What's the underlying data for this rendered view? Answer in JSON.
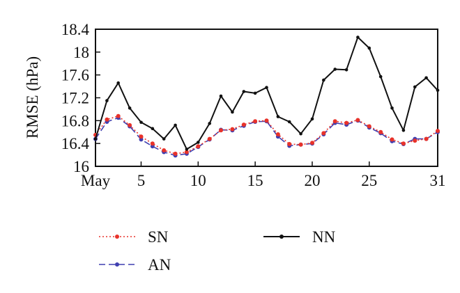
{
  "chart_data": {
    "type": "line",
    "title": "",
    "xlabel": "",
    "ylabel": "RMSE (hPa)",
    "xlim": [
      1,
      31
    ],
    "ylim": [
      16,
      18.4
    ],
    "x_ticks": [
      1,
      5,
      10,
      15,
      20,
      25,
      31
    ],
    "x_tick_labels": [
      "May",
      "5",
      "10",
      "15",
      "20",
      "25",
      "31"
    ],
    "y_ticks": [
      16,
      16.4,
      16.8,
      17.2,
      17.6,
      18,
      18.4
    ],
    "y_tick_labels": [
      "16",
      "16.4",
      "16.8",
      "17.2",
      "17.6",
      "18",
      "18.4"
    ],
    "grid": false,
    "legend_position": "bottom",
    "x": [
      1,
      2,
      3,
      4,
      5,
      6,
      7,
      8,
      9,
      10,
      11,
      12,
      13,
      14,
      15,
      16,
      17,
      18,
      19,
      20,
      21,
      22,
      23,
      24,
      25,
      26,
      27,
      28,
      29,
      30,
      31
    ],
    "series": [
      {
        "name": "SN",
        "color": "#e8322a",
        "line_style": "dotted",
        "values": [
          16.55,
          16.82,
          16.88,
          16.72,
          16.52,
          16.4,
          16.28,
          16.22,
          16.25,
          16.35,
          16.48,
          16.63,
          16.65,
          16.73,
          16.79,
          16.8,
          16.56,
          16.39,
          16.38,
          16.41,
          16.58,
          16.79,
          16.76,
          16.81,
          16.7,
          16.6,
          16.47,
          16.4,
          16.45,
          16.48,
          16.62
        ]
      },
      {
        "name": "AN",
        "color": "#3f3fb0",
        "line_style": "dashed",
        "values": [
          16.48,
          16.78,
          16.85,
          16.7,
          16.47,
          16.35,
          16.25,
          16.19,
          16.22,
          16.34,
          16.47,
          16.64,
          16.63,
          16.71,
          16.78,
          16.79,
          16.52,
          16.36,
          16.38,
          16.4,
          16.56,
          16.76,
          16.73,
          16.8,
          16.68,
          16.58,
          16.44,
          16.39,
          16.48,
          16.48,
          16.6
        ]
      },
      {
        "name": "NN",
        "color": "#111111",
        "line_style": "solid",
        "values": [
          16.48,
          17.15,
          17.46,
          17.02,
          16.77,
          16.66,
          16.48,
          16.72,
          16.3,
          16.42,
          16.75,
          17.23,
          16.95,
          17.31,
          17.28,
          17.38,
          16.87,
          16.78,
          16.57,
          16.83,
          17.51,
          17.7,
          17.69,
          18.26,
          18.07,
          17.57,
          17.02,
          16.63,
          17.39,
          17.55,
          17.33
        ]
      }
    ]
  }
}
